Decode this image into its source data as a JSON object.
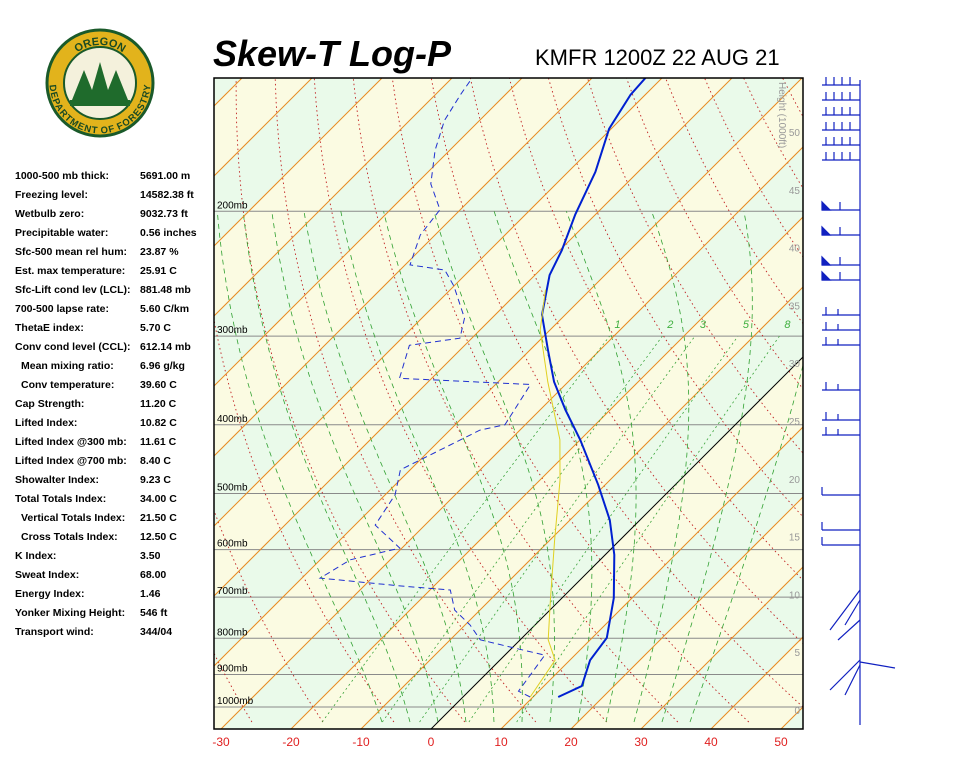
{
  "logo": {
    "top": "OREGON",
    "bottom": "DEPARTMENT OF FORESTRY"
  },
  "stats": [
    {
      "label": "1000-500 mb thick:",
      "value": "5691.00 m"
    },
    {
      "label": "Freezing level:",
      "value": "14582.38 ft"
    },
    {
      "label": "Wetbulb zero:",
      "value": "9032.73 ft"
    },
    {
      "label": "Precipitable water:",
      "value": "0.56 inches"
    },
    {
      "label": "Sfc-500 mean rel hum:",
      "value": "23.87 %"
    },
    {
      "label": "Est. max temperature:",
      "value": "25.91 C"
    },
    {
      "label": "Sfc-Lift cond lev (LCL):",
      "value": "881.48 mb"
    },
    {
      "label": "700-500 lapse rate:",
      "value": "5.60 C/km"
    },
    {
      "label": "ThetaE index:",
      "value": "5.70 C"
    },
    {
      "label": "Conv cond level (CCL):",
      "value": "612.14 mb"
    },
    {
      "label": "Mean mixing ratio:",
      "value": "6.96 g/kg"
    },
    {
      "label": "Conv temperature:",
      "value": "39.60 C"
    },
    {
      "label": "Cap Strength:",
      "value": "11.20 C"
    },
    {
      "label": "Lifted Index:",
      "value": "10.82 C"
    },
    {
      "label": "Lifted Index @300 mb:",
      "value": "11.61 C"
    },
    {
      "label": "Lifted Index @700 mb:",
      "value": "8.40 C"
    },
    {
      "label": "Showalter Index:",
      "value": "9.23 C"
    },
    {
      "label": "Total Totals Index:",
      "value": "34.00 C"
    },
    {
      "label": "Vertical Totals Index:",
      "value": "21.50 C"
    },
    {
      "label": "Cross Totals Index:",
      "value": "12.50 C"
    },
    {
      "label": "K Index:",
      "value": "3.50"
    },
    {
      "label": "Sweat Index:",
      "value": "68.00"
    },
    {
      "label": "Energy Index:",
      "value": "1.46"
    },
    {
      "label": "Yonker Mixing Height:",
      "value": "546 ft"
    },
    {
      "label": "Transport wind:",
      "value": "344/04"
    }
  ],
  "chart_data": {
    "type": "skewt",
    "title": "Skew-T Log-P",
    "subtitle": "KMFR 1200Z 22 AUG 21",
    "y2_label": "Height (1000ft)",
    "xticks": [
      -30,
      -20,
      -10,
      0,
      10,
      20,
      30,
      40,
      50
    ],
    "yticks": [
      {
        "value": 200,
        "label": "200mb"
      },
      {
        "value": 300,
        "label": "300mb"
      },
      {
        "value": 400,
        "label": "400mb"
      },
      {
        "value": 500,
        "label": "500mb"
      },
      {
        "value": 600,
        "label": "600mb"
      },
      {
        "value": 700,
        "label": "700mb"
      },
      {
        "value": 800,
        "label": "800mb"
      },
      {
        "value": 900,
        "label": "900mb"
      },
      {
        "value": 1000,
        "label": "1000mb"
      }
    ],
    "y2ticks": [
      0,
      5,
      10,
      15,
      20,
      25,
      30,
      35,
      40,
      45,
      50
    ],
    "mixing_ratios": [
      1,
      2,
      3,
      5,
      8
    ],
    "series": [
      {
        "color": "#0020d0",
        "style": "solid",
        "pressure": [
          968,
          934,
          859,
          799,
          702,
          610,
          545,
          486,
          420,
          381,
          348,
          314,
          280,
          246,
          227,
          202,
          176,
          153,
          137,
          129
        ],
        "values": [
          13.6,
          15.4,
          12.9,
          12.1,
          7.4,
          1.3,
          -4.3,
          -11,
          -20,
          -26.4,
          -32,
          -37.4,
          -43.3,
          -47.9,
          -49.7,
          -52.9,
          -56.1,
          -60.3,
          -62.1,
          -62.4
        ]
      },
      {
        "color": "#2030d0",
        "style": "dashed",
        "pressure": [
          968,
          950,
          845,
          826,
          804,
          766,
          730,
          684,
          675,
          658,
          620,
          597,
          554,
          502,
          463,
          407,
          400,
          351,
          344,
          309,
          302,
          283,
          255,
          242,
          238,
          216,
          199,
          183,
          164,
          149,
          137,
          130
        ],
        "values": [
          9.6,
          7.1,
          5.7,
          0.4,
          -5.7,
          -9.3,
          -13.6,
          -17.1,
          -24.9,
          -37.4,
          -35.7,
          -30.3,
          -37.1,
          -38.6,
          -41.4,
          -35.7,
          -32.9,
          -35,
          -54.6,
          -57.9,
          -51.7,
          -53.9,
          -60,
          -63.6,
          -69.3,
          -72.1,
          -72.9,
          -77.9,
          -82.1,
          -85,
          -86.4,
          -87.1
        ]
      },
      {
        "color": "#e0d020",
        "style": "solid",
        "pressure": [
          968,
          859,
          804,
          706,
          582,
          479,
          420,
          348,
          294,
          258
        ],
        "values": [
          9.6,
          7.9,
          4,
          -1.4,
          -9.3,
          -17.1,
          -22.9,
          -32.9,
          -41.4,
          -46.4
        ]
      }
    ]
  }
}
